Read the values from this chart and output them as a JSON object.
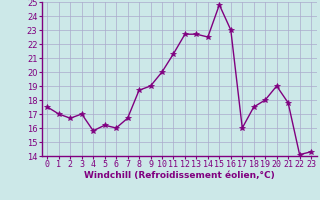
{
  "x": [
    0,
    1,
    2,
    3,
    4,
    5,
    6,
    7,
    8,
    9,
    10,
    11,
    12,
    13,
    14,
    15,
    16,
    17,
    18,
    19,
    20,
    21,
    22,
    23
  ],
  "y": [
    17.5,
    17.0,
    16.7,
    17.0,
    15.8,
    16.2,
    16.0,
    16.7,
    18.7,
    19.0,
    20.0,
    21.3,
    22.7,
    22.7,
    22.5,
    24.8,
    23.0,
    16.0,
    17.5,
    18.0,
    19.0,
    17.8,
    14.1,
    14.3
  ],
  "line_color": "#800080",
  "marker": "*",
  "marker_size": 4,
  "linewidth": 1.0,
  "xlabel": "Windchill (Refroidissement éolien,°C)",
  "xlabel_fontsize": 6.5,
  "ylim": [
    14,
    25
  ],
  "xlim": [
    -0.5,
    23.5
  ],
  "yticks": [
    14,
    15,
    16,
    17,
    18,
    19,
    20,
    21,
    22,
    23,
    24,
    25
  ],
  "xticks": [
    0,
    1,
    2,
    3,
    4,
    5,
    6,
    7,
    8,
    9,
    10,
    11,
    12,
    13,
    14,
    15,
    16,
    17,
    18,
    19,
    20,
    21,
    22,
    23
  ],
  "xtick_labels": [
    "0",
    "1",
    "2",
    "3",
    "4",
    "5",
    "6",
    "7",
    "8",
    "9",
    "10",
    "11",
    "12",
    "13",
    "14",
    "15",
    "16",
    "17",
    "18",
    "19",
    "20",
    "21",
    "22",
    "23"
  ],
  "background_color": "#cce8e8",
  "grid_color": "#aaaacc",
  "tick_fontsize": 6.0,
  "spine_color": "#800080"
}
